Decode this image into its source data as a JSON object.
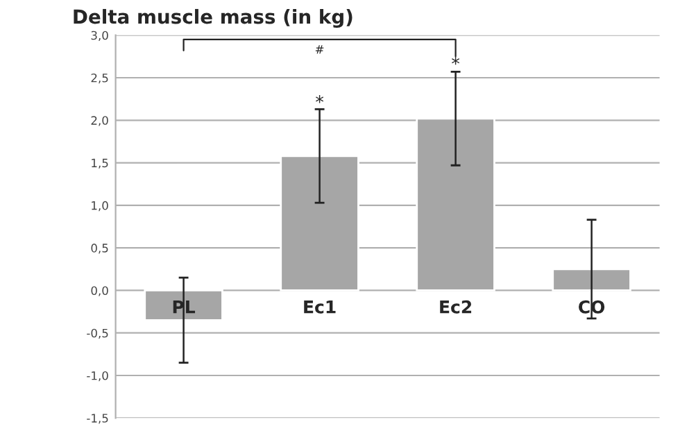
{
  "chart_data": {
    "type": "bar",
    "title": "Delta muscle mass (in kg)",
    "categories": [
      "PL",
      "Ec1",
      "Ec2",
      "CO"
    ],
    "values": [
      -0.35,
      1.58,
      2.02,
      0.25
    ],
    "errors": [
      0.5,
      0.55,
      0.55,
      0.58
    ],
    "color": "#a6a6a6",
    "ylim": [
      -1.5,
      3.0
    ],
    "yticks": [
      {
        "value": -1.5,
        "label": "-1,5"
      },
      {
        "value": -1.0,
        "label": "-1,0"
      },
      {
        "value": -0.5,
        "label": "-0,5"
      },
      {
        "value": 0.0,
        "label": "0,0"
      },
      {
        "value": 0.5,
        "label": "0,5"
      },
      {
        "value": 1.0,
        "label": "1,0"
      },
      {
        "value": 1.5,
        "label": "1,5"
      },
      {
        "value": 2.0,
        "label": "2,0"
      },
      {
        "value": 2.5,
        "label": "2,5"
      },
      {
        "value": 3.0,
        "label": "3,0"
      }
    ],
    "grid": "y",
    "annotations": [
      {
        "text": "*",
        "x": "Ec1",
        "y": 2.2
      },
      {
        "text": "*",
        "x": "Ec2",
        "y": 2.65
      },
      "#"
    ]
  }
}
